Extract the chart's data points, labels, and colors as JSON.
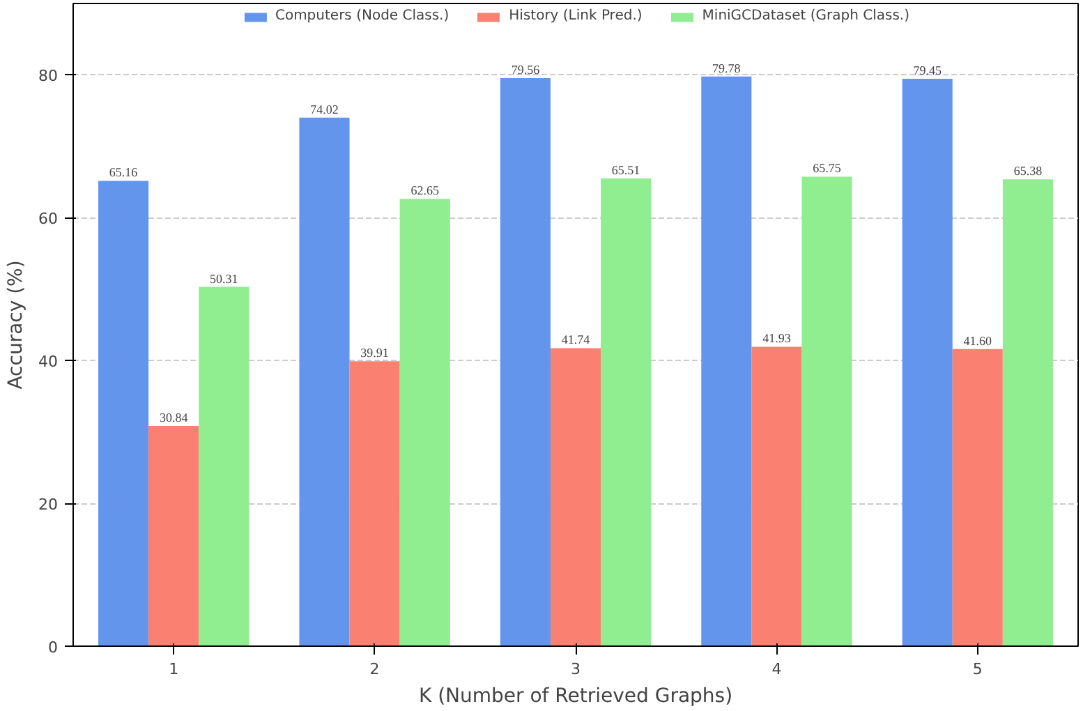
{
  "chart_data": {
    "type": "bar",
    "xlabel": "K (Number of Retrieved Graphs)",
    "ylabel": "Accuracy (%)",
    "categories": [
      "1",
      "2",
      "3",
      "4",
      "5"
    ],
    "series": [
      {
        "name": "Computers (Node Class.)",
        "color": "#6495ed",
        "values": [
          65.16,
          74.02,
          79.56,
          79.78,
          79.45
        ],
        "value_labels": [
          "65.16",
          "74.02",
          "79.56",
          "79.78",
          "79.45"
        ]
      },
      {
        "name": "History (Link Pred.)",
        "color": "#fa8072",
        "values": [
          30.84,
          39.91,
          41.74,
          41.93,
          41.6
        ],
        "value_labels": [
          "30.84",
          "39.91",
          "41.74",
          "41.93",
          "41.60"
        ]
      },
      {
        "name": "MiniGCDataset (Graph Class.)",
        "color": "#90ee90",
        "values": [
          50.31,
          62.65,
          65.51,
          65.75,
          65.38
        ],
        "value_labels": [
          "50.31",
          "62.65",
          "65.51",
          "65.75",
          "65.38"
        ]
      }
    ],
    "ylim": [
      0,
      90
    ],
    "yticks": [
      0,
      20,
      40,
      60,
      80
    ],
    "grid": "y",
    "legend": "top"
  }
}
